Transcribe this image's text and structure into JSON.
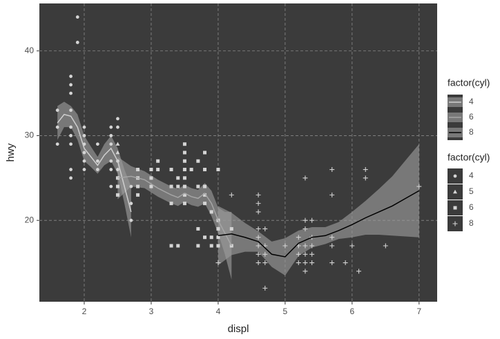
{
  "chart_data": {
    "type": "scatter",
    "x_label": "displ",
    "y_label": "hwy",
    "xlim": [
      1.33,
      7.27
    ],
    "ylim": [
      10.4,
      45.6
    ],
    "xticks": [
      2,
      3,
      4,
      5,
      6,
      7
    ],
    "yticks": [
      20,
      30,
      40
    ],
    "grid": true,
    "panel_color": "#3b3b3b",
    "grid_color": "#8a8a8a",
    "ribbon_color": "#9a9a9a",
    "line_legend_title": "factor(cyl)",
    "shape_legend_title": "factor(cyl)",
    "points": [
      {
        "name": "4",
        "shape": "circle",
        "color": "#d4d4d4",
        "x": [
          1.6,
          1.6,
          1.6,
          1.8,
          1.8,
          1.8,
          1.8,
          1.8,
          1.8,
          1.8,
          1.8,
          1.8,
          1.9,
          1.9,
          2.0,
          2.0,
          2.0,
          2.0,
          2.0,
          2.0,
          2.2,
          2.2,
          2.2,
          2.4,
          2.4,
          2.4,
          2.4,
          2.4,
          2.4,
          2.5,
          2.5,
          2.5,
          2.5,
          2.5,
          2.7,
          2.7,
          2.7
        ],
        "values": [
          29,
          33,
          31,
          29,
          25,
          26,
          30,
          31,
          33,
          35,
          36,
          37,
          41,
          44,
          26,
          27,
          28,
          29,
          30,
          31,
          26,
          27,
          29,
          24,
          26,
          27,
          29,
          30,
          31,
          25,
          26,
          27,
          31,
          32,
          20,
          22,
          24
        ]
      },
      {
        "name": "5",
        "shape": "triangle",
        "color": "#d4d4d4",
        "x": [
          2.5,
          2.5
        ],
        "values": [
          28,
          29
        ]
      },
      {
        "name": "6",
        "shape": "square",
        "color": "#d4d4d4",
        "x": [
          2.5,
          2.5,
          2.5,
          2.8,
          2.8,
          2.8,
          2.8,
          3.0,
          3.0,
          3.0,
          3.1,
          3.1,
          3.3,
          3.3,
          3.3,
          3.3,
          3.4,
          3.4,
          3.4,
          3.5,
          3.5,
          3.5,
          3.5,
          3.5,
          3.5,
          3.5,
          3.5,
          3.6,
          3.7,
          3.7,
          3.7,
          3.7,
          3.8,
          3.8,
          3.8,
          3.8,
          3.8,
          3.8,
          3.9,
          3.9,
          3.9,
          4.0,
          4.0,
          4.0,
          4.0,
          4.0,
          4.2,
          4.2
        ],
        "values": [
          23,
          24,
          25,
          23,
          24,
          25,
          26,
          24,
          25,
          26,
          26,
          27,
          17,
          22,
          24,
          26,
          17,
          24,
          25,
          22,
          23,
          24,
          25,
          26,
          27,
          28,
          29,
          26,
          17,
          19,
          24,
          27,
          18,
          22,
          23,
          24,
          26,
          28,
          17,
          18,
          21,
          17,
          18,
          19,
          20,
          26,
          17,
          19
        ]
      },
      {
        "name": "8",
        "shape": "plus",
        "color": "#d4d4d4",
        "x": [
          4.0,
          4.2,
          4.6,
          4.6,
          4.6,
          4.6,
          4.6,
          4.6,
          4.6,
          4.6,
          4.7,
          4.7,
          4.7,
          4.7,
          4.7,
          5.0,
          5.2,
          5.2,
          5.2,
          5.2,
          5.3,
          5.3,
          5.3,
          5.3,
          5.3,
          5.3,
          5.3,
          5.4,
          5.4,
          5.4,
          5.4,
          5.4,
          5.7,
          5.7,
          5.7,
          5.7,
          5.7,
          5.9,
          6.0,
          6.1,
          6.2,
          6.2,
          6.5,
          7.0
        ],
        "values": [
          15,
          23,
          15,
          16,
          17,
          18,
          19,
          21,
          22,
          23,
          12,
          15,
          16,
          17,
          19,
          17,
          15,
          16,
          17,
          18,
          14,
          15,
          16,
          17,
          19,
          20,
          25,
          15,
          16,
          17,
          18,
          20,
          15,
          17,
          18,
          23,
          26,
          15,
          17,
          14,
          25,
          26,
          17,
          24
        ]
      }
    ],
    "smooth": [
      {
        "name": "4",
        "color": "#cfcfcf",
        "x": [
          1.6,
          1.7,
          1.8,
          1.9,
          2.0,
          2.1,
          2.2,
          2.3,
          2.4,
          2.5,
          2.6,
          2.7
        ],
        "values": [
          31.5,
          32.5,
          32.3,
          31,
          28.5,
          27.5,
          26.5,
          27.7,
          28.5,
          27,
          24,
          21
        ],
        "lower": [
          29.5,
          31,
          31,
          29.5,
          27,
          26.3,
          25.5,
          26.5,
          27,
          25.5,
          22,
          18
        ],
        "upper": [
          33.5,
          34,
          33.5,
          32.5,
          30,
          28.7,
          27.5,
          29,
          30,
          28.5,
          26,
          24
        ]
      },
      {
        "name": "6",
        "color": "#a6a6a6",
        "x": [
          2.5,
          2.7,
          2.9,
          3.1,
          3.3,
          3.4,
          3.5,
          3.6,
          3.7,
          3.8,
          3.9,
          4.0,
          4.1,
          4.2
        ],
        "values": [
          25,
          25.2,
          24.8,
          23.8,
          23,
          22.7,
          23.2,
          22.8,
          22.6,
          23.2,
          22,
          20,
          18.5,
          17
        ],
        "lower": [
          22.5,
          24,
          23.8,
          22.8,
          22,
          21.7,
          22.2,
          21.8,
          21.6,
          22,
          20.5,
          18.5,
          16,
          13
        ],
        "upper": [
          27.5,
          26.4,
          25.8,
          24.8,
          24,
          23.7,
          24.2,
          23.8,
          23.6,
          24.4,
          23.5,
          21.5,
          21,
          21
        ]
      },
      {
        "name": "8",
        "color": "#000000",
        "x": [
          4.0,
          4.2,
          4.4,
          4.6,
          4.8,
          5.0,
          5.2,
          5.4,
          5.6,
          5.8,
          6.0,
          6.2,
          6.4,
          6.6,
          6.8,
          7.0
        ],
        "values": [
          18.2,
          18.4,
          18,
          17.5,
          16,
          15.7,
          17.3,
          18,
          18.2,
          18.8,
          19.5,
          20.3,
          21,
          21.7,
          22.6,
          23.5
        ],
        "lower": [
          14.7,
          15.9,
          16.3,
          16.3,
          14.5,
          13.5,
          15.8,
          16.8,
          17.2,
          17.8,
          18,
          18.3,
          18.3,
          18.2,
          18.1,
          18
        ],
        "upper": [
          21.7,
          20.9,
          19.7,
          18.7,
          17.5,
          17.9,
          18.8,
          19.2,
          19.2,
          19.8,
          21,
          22.3,
          23.7,
          25.2,
          27.1,
          29
        ]
      }
    ]
  }
}
